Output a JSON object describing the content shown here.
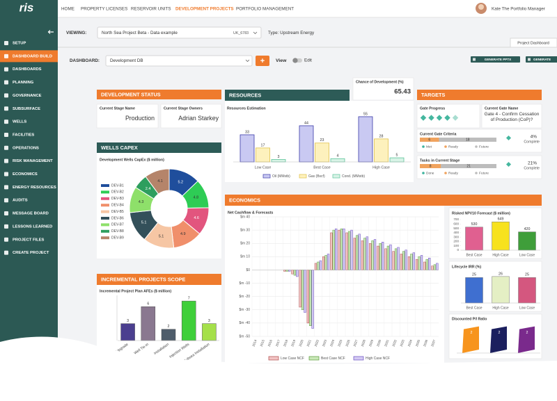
{
  "brand": "ris",
  "nav": [
    "HOME",
    "PROPERTY LICENSES",
    "RESERVOIR UNITS",
    "DEVELOPMENT PROJECTS",
    "PORTFOLIO MANAGEMENT"
  ],
  "user": "Kate The Portfolio Manager",
  "sidebar": [
    "SETUP",
    "DASHBOARD BUILD",
    "DASHBOARDS",
    "PLANNING",
    "GOVERNANCE",
    "SUBSURFACE",
    "WELLS",
    "FACILITIES",
    "OPERATIONS",
    "RISK MANAGEMENT",
    "ECONOMICS",
    "ENERGY RESOURCES",
    "AUDITS",
    "MESSAGE BOARD",
    "LESSONS LEARNED",
    "PROJECT FILES",
    "CREATE PROJECT"
  ],
  "viewing": {
    "label": "VIEWING:",
    "project": "North Sea Project Beta - Data example",
    "code": "UK_6783",
    "type": "Type: Upstream Energy",
    "tab": "Project Dashboard"
  },
  "dashboard": {
    "label": "DASHBOARD:",
    "name": "Development DB",
    "add": "+",
    "view": "View",
    "edit": "Edit",
    "buttons": [
      "GENERATE PPTX",
      "GENERATE"
    ]
  },
  "development_status": {
    "title": "DEVELOPMENT STATUS",
    "stage_label": "Current Stage Name",
    "stage": "Production",
    "owners_label": "Current Stage Owners",
    "owners": "Adrian Starkey"
  },
  "resources": {
    "title": "RESOURCES",
    "chart": {
      "type": "bar",
      "title": "Resources Estimation",
      "categories": [
        "Low Case",
        "Best Case",
        "High Case"
      ],
      "series": [
        {
          "name": "Oil (MMstb)",
          "color": "#3b3ba8",
          "fill": "#c9c9f2",
          "values": [
            33,
            44,
            55
          ]
        },
        {
          "name": "Gas (Bscf)",
          "color": "#e0c14a",
          "fill": "#fdf1bd",
          "values": [
            17,
            23,
            28
          ]
        },
        {
          "name": "Cond. (MMstb)",
          "color": "#5cc49a",
          "fill": "#d8f3e6",
          "values": [
            3,
            4,
            5
          ]
        }
      ],
      "ylim": [
        0,
        60
      ]
    }
  },
  "chance": {
    "label": "Chance of Development (%)",
    "value": 65.43
  },
  "targets": {
    "title": "TARGETS",
    "gate_progress": "Gate Progress",
    "gate_name_label": "Current Gate Name",
    "gate_name": "Gate 4 - Confirm Cessation of Production (CoP)?",
    "criteria": {
      "title": "Current Gate Criteria",
      "categories": [
        "Met",
        "Ready",
        "Future"
      ],
      "values": [
        0,
        6,
        18
      ],
      "colors": [
        "#3db39e",
        "#f0a35e",
        "#bdbdbd"
      ],
      "percent": "4%",
      "complete": "Complete"
    },
    "tasks": {
      "title": "Tasks in Current Stage",
      "categories": [
        "Done",
        "Ready",
        "Future"
      ],
      "values": [
        0,
        8,
        21
      ],
      "colors": [
        "#3db39e",
        "#f0a35e",
        "#bdbdbd"
      ],
      "percent": "21%",
      "complete": "Complete"
    }
  },
  "wells_capex": {
    "title": "WELLS CAPEX",
    "chart": {
      "type": "pie",
      "title": "Development Wells CapEx ($ million)",
      "categories": [
        "DEV-B1",
        "DEV-B2",
        "DEV-B3",
        "DEV-B4",
        "DEV-B5",
        "DEV-B6",
        "DEV-B7",
        "DEV-B8",
        "DEV-B9"
      ],
      "values": [
        5.2,
        4.8,
        4.6,
        4.9,
        5.1,
        5.1,
        4.3,
        2.4,
        4.1
      ],
      "colors": [
        "#1f4e9c",
        "#2ecc55",
        "#e2557e",
        "#f08f6b",
        "#f6c6a4",
        "#33505a",
        "#8ee06a",
        "#2e9e5e",
        "#b5846a"
      ]
    }
  },
  "incremental": {
    "title": "INCREMENTAL PROJECTS SCOPE",
    "chart": {
      "type": "bar",
      "title": "Incremental Project Plan AFEs ($ million)",
      "categories": [
        "Upgrade",
        "Well Tie-in",
        "Installation",
        "Injection Wells",
        "Subsea Installation"
      ],
      "values": [
        3,
        6,
        2,
        7,
        3
      ],
      "colors": [
        "#4b3f8f",
        "#8a7890",
        "#4f5d6b",
        "#3fcf3a",
        "#a5e04a"
      ],
      "ylim": [
        0,
        8
      ]
    }
  },
  "economics": {
    "title": "ECONOMICS",
    "cashflow": {
      "type": "bar",
      "title": "Net Cashflow & Forecasts",
      "categories": [
        "2014",
        "2015",
        "2016",
        "2017",
        "2018",
        "2019",
        "2020",
        "2021",
        "2022",
        "2023",
        "2024",
        "2025",
        "2026",
        "2027",
        "2028",
        "2029",
        "2030",
        "2031",
        "2032",
        "2033",
        "2034",
        "2035",
        "2036",
        "2037"
      ],
      "series": [
        {
          "name": "Low Case NCF",
          "color": "#b04a4a",
          "fill": "#f2c4c4",
          "values": [
            0,
            0,
            0,
            0,
            -1,
            -3,
            -28,
            -40,
            5,
            10,
            28,
            30,
            28,
            24,
            22,
            20,
            18,
            16,
            14,
            12,
            10,
            8,
            6,
            3
          ]
        },
        {
          "name": "Best Case NCF",
          "color": "#5a9a3a",
          "fill": "#c9e8b8",
          "values": [
            0,
            0,
            0,
            0,
            -1,
            -4,
            -30,
            -42,
            6,
            11,
            30,
            31,
            29,
            26,
            24,
            22,
            20,
            18,
            16,
            14,
            12,
            10,
            8,
            4
          ]
        },
        {
          "name": "High Case NCF",
          "color": "#6a4fc0",
          "fill": "#d4caf3",
          "values": [
            0,
            0,
            0,
            0,
            -1,
            -5,
            -32,
            -44,
            7,
            12,
            31,
            31,
            30,
            27,
            25,
            23,
            21,
            19,
            17,
            15,
            13,
            11,
            9,
            5
          ]
        }
      ],
      "ylim": [
        -50,
        40
      ],
      "yticks": [
        {
          "value": -50,
          "label": "$m -50"
        },
        {
          "value": -40,
          "label": "$m -40"
        },
        {
          "value": -30,
          "label": "$m -30"
        },
        {
          "value": -20,
          "label": "$m -20"
        },
        {
          "value": -10,
          "label": "$m -10"
        },
        {
          "value": 0,
          "label": "$0"
        },
        {
          "value": 10,
          "label": "$m 10"
        },
        {
          "value": 20,
          "label": "$m 20"
        },
        {
          "value": 30,
          "label": "$m 30"
        },
        {
          "value": 40,
          "label": "$m 40"
        }
      ],
      "grid": true
    },
    "npv": {
      "type": "bar",
      "title": "Risked NPV10 Forecast ($ million)",
      "categories": [
        "Best Case",
        "High Case",
        "Low Case"
      ],
      "values": [
        530,
        649,
        420
      ],
      "colors": [
        "#e06090",
        "#f7e21e",
        "#3f9e3a"
      ],
      "ylim": [
        0,
        700
      ],
      "yticks": [
        0,
        100,
        200,
        300,
        400,
        500,
        600,
        700
      ]
    },
    "irr": {
      "type": "bar",
      "title": "Lifecycle IRR (%)",
      "categories": [
        "Best Case",
        "High Case",
        "Low Case"
      ],
      "values": [
        25,
        26,
        25
      ],
      "colors": [
        "#3f6fd0",
        "#e4efc4",
        "#d4577f"
      ],
      "ylim": [
        0,
        30
      ]
    },
    "pi": {
      "type": "bar",
      "title": "Discounted P/I Ratio",
      "values": [
        2,
        2,
        2
      ],
      "colors": [
        "#f7941d",
        "#1b1f5e",
        "#7a2a8c"
      ],
      "ylim": [
        0,
        2.5
      ]
    }
  }
}
